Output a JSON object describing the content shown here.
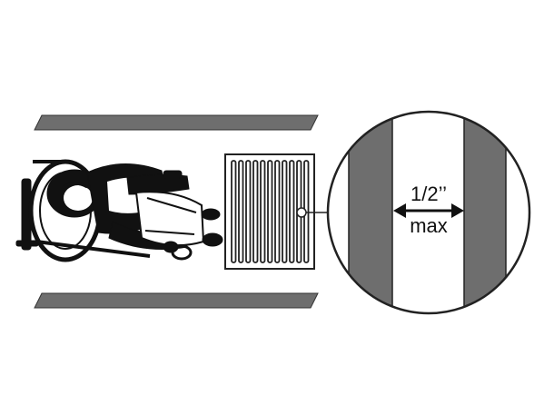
{
  "diagram": {
    "dimension": {
      "value": "1/2’’",
      "qualifier": "max"
    },
    "colors": {
      "stripe": "#6e6e6e",
      "outline": "#333333",
      "figure": "#111111",
      "background": "#ffffff"
    },
    "icons": [
      "wheelchair-user-icon",
      "grate-icon",
      "magnifier-circle-icon"
    ]
  }
}
